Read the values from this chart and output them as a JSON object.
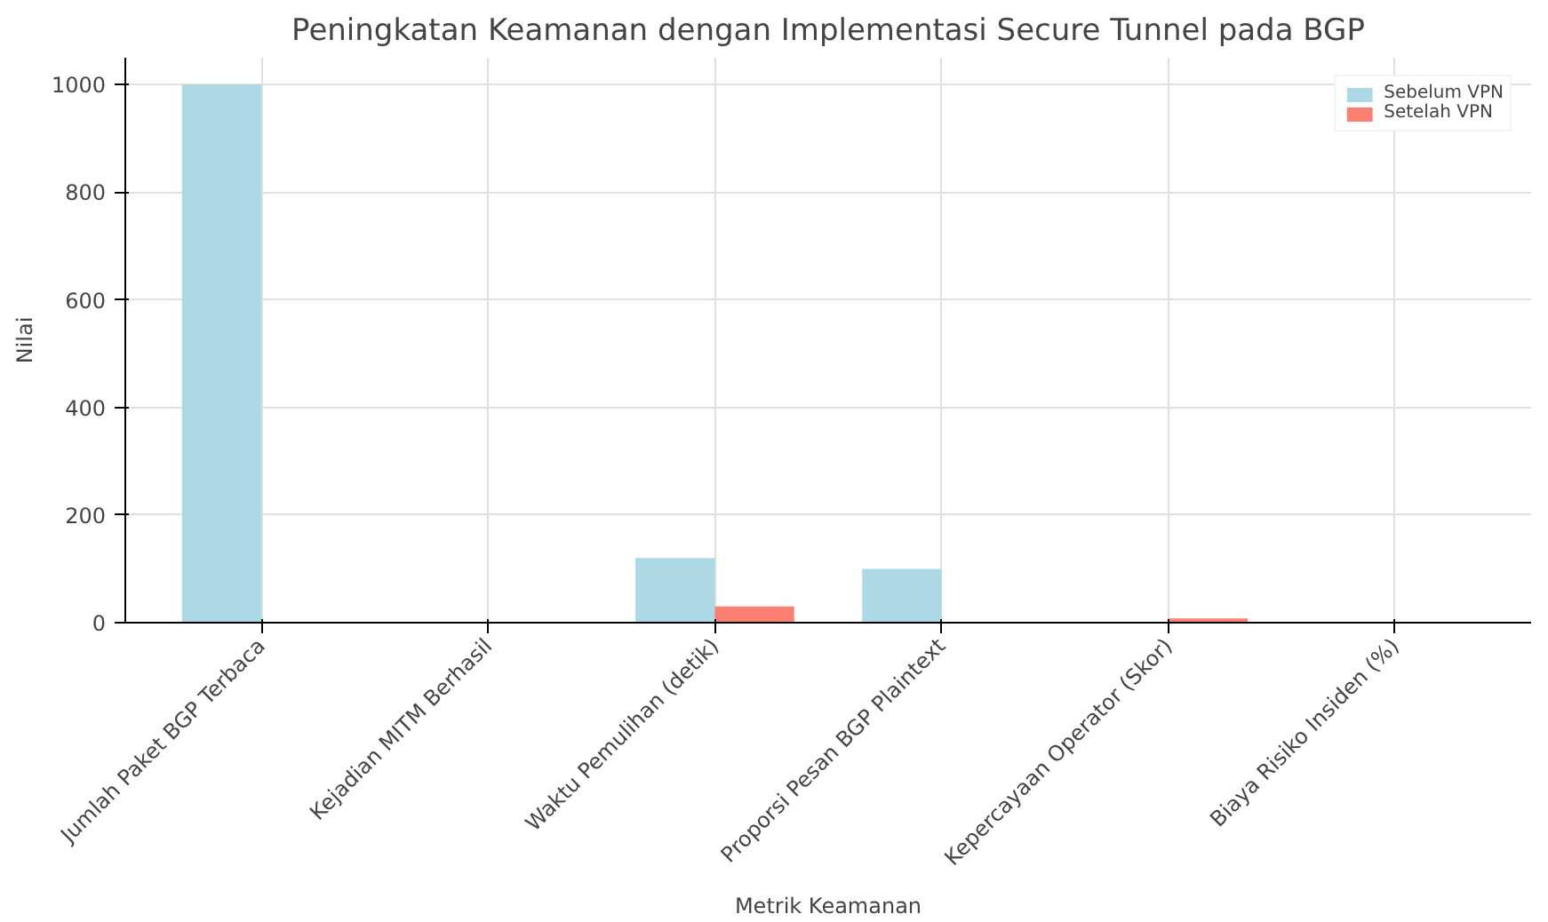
{
  "chart_data": {
    "type": "bar",
    "title": "Peningkatan Keamanan dengan Implementasi Secure Tunnel pada BGP",
    "xlabel": "Metrik Keamanan",
    "ylabel": "Nilai",
    "categories": [
      "Jumlah Paket BGP Terbaca",
      "Kejadian MITM Berhasil",
      "Waktu Pemulihan (detik)",
      "Proporsi Pesan BGP Plaintext",
      "Kepercayaan Operator (Skor)",
      "Biaya Risiko Insiden (%)"
    ],
    "series": [
      {
        "name": "Sebelum VPN",
        "color": "#add8e6",
        "values": [
          1000,
          null,
          120,
          100,
          null,
          null
        ]
      },
      {
        "name": "Setelah VPN",
        "color": "#fa8072",
        "values": [
          0,
          0,
          30,
          null,
          8,
          null
        ]
      }
    ],
    "ylim": [
      0,
      1050
    ],
    "yticks": [
      0,
      200,
      400,
      600,
      800,
      1000
    ],
    "grid": true,
    "legend": "top right"
  }
}
